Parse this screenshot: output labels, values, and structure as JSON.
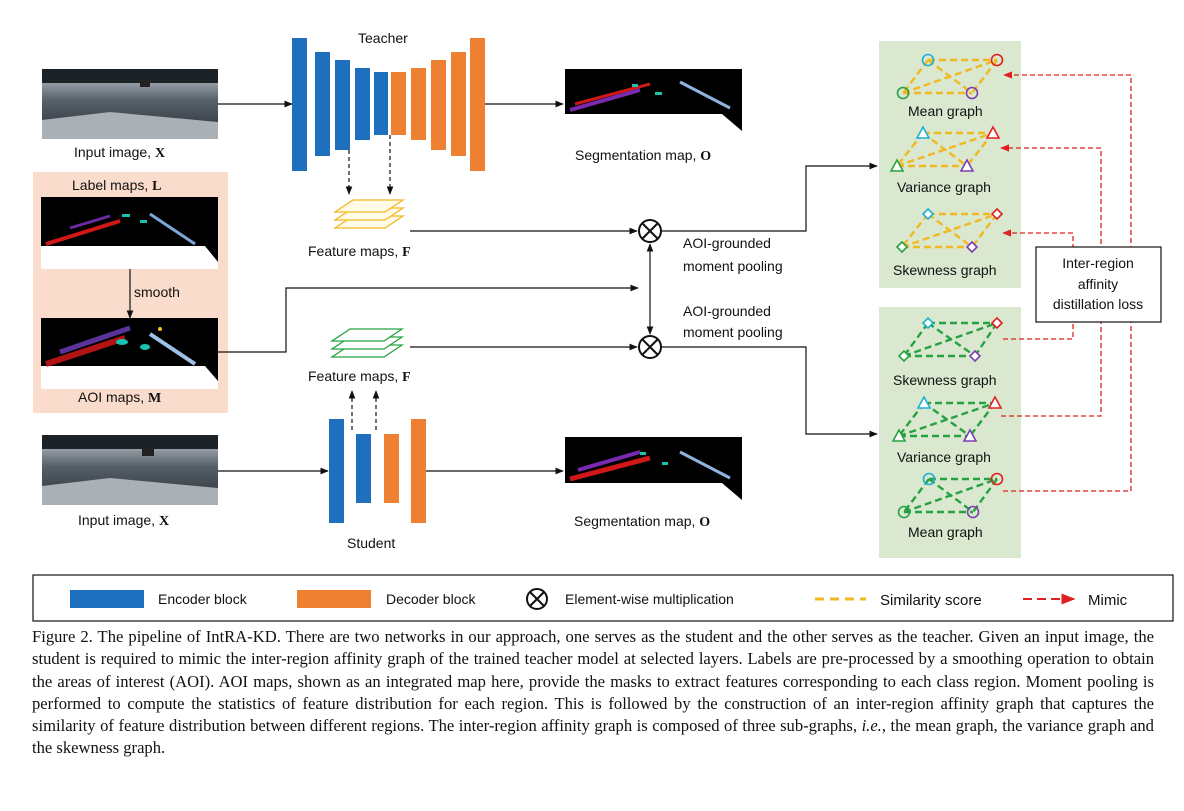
{
  "figure": {
    "teacher_label": "Teacher",
    "student_label": "Student",
    "input_image_label": "Input image, ",
    "input_image_symbol": "X",
    "segmentation_label": "Segmentation map, ",
    "segmentation_symbol": "O",
    "label_maps_label": "Label maps, ",
    "label_maps_symbol": "L",
    "smooth_label": "smooth",
    "aoi_maps_label": "AOI maps, ",
    "aoi_maps_symbol": "M",
    "feature_maps_label": "Feature maps, ",
    "feature_maps_symbol": "F",
    "pooling_line1": "AOI-grounded",
    "pooling_line2": "moment pooling",
    "teacher_graphs": [
      "Mean graph",
      "Variance graph",
      "Skewness graph"
    ],
    "student_graphs": [
      "Skewness graph",
      "Variance graph",
      "Mean graph"
    ],
    "loss_line1": "Inter-region",
    "loss_line2": "affinity",
    "loss_line3": "distillation loss"
  },
  "legend": {
    "encoder": "Encoder block",
    "decoder": "Decoder block",
    "multiply": "Element-wise multiplication",
    "similarity": "Similarity score",
    "mimic": "Mimic"
  },
  "colors": {
    "encoder": "#1f6fbf",
    "decoder": "#ee8031",
    "graph_panel": "#d9e8cf",
    "teacher_edges": "#f2b821",
    "student_edges": "#27a243",
    "mimic": "#e02020",
    "aoi_panel": "#f9dccb"
  },
  "caption": {
    "part1": "Figure 2. The pipeline of IntRA-KD. There are two networks in our approach, one serves as the student and the other serves as the teacher. Given an input image, the student is required to mimic the inter-region affinity graph of the trained teacher model at selected layers. Labels are pre-processed by a smoothing operation to obtain the areas of interest (AOI). AOI maps, shown as an integrated map here, provide the masks to extract features corresponding to each class region. Moment pooling is performed to compute the statistics of feature distribution for each region.  This is followed by the construction of an inter-region affinity graph that captures the similarity of feature distribution between different regions. The inter-region affinity graph is composed of three sub-graphs, ",
    "italic": "i.e.",
    "part2": ", the mean graph, the variance graph and the skewness graph."
  }
}
